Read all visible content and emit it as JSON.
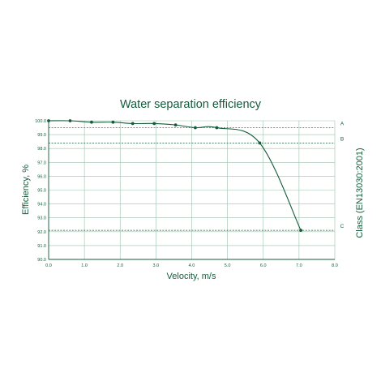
{
  "chart_data": {
    "type": "line",
    "title": "Water separation efficiency",
    "xlabel": "Velocity, m/s",
    "ylabel": "Efficiency, %",
    "y2label": "Class (EN13030:2001)",
    "xlim": [
      0,
      8
    ],
    "ylim": [
      90,
      100
    ],
    "x_ticks": [
      "0.0",
      "1.0",
      "2.0",
      "3.0",
      "4.0",
      "5.0",
      "6.0",
      "7.0",
      "8.0"
    ],
    "y_ticks": [
      "90.0",
      "91.0",
      "92.0",
      "93.0",
      "94.0",
      "95.0",
      "96.0",
      "97.0",
      "98.0",
      "99.0",
      "100.0"
    ],
    "grid": true,
    "series": [
      {
        "x": [
          0.0,
          0.6,
          1.2,
          1.8,
          2.35,
          2.95,
          3.55,
          4.1,
          4.7,
          5.9,
          7.05
        ],
        "y": [
          100.0,
          100.0,
          99.9,
          99.9,
          99.8,
          99.8,
          99.7,
          99.5,
          99.5,
          98.4,
          92.1
        ]
      }
    ],
    "class_thresholds": [
      {
        "label": "A",
        "value": 99.5
      },
      {
        "label": "B",
        "value": 98.4
      },
      {
        "label": "C",
        "value": 92.1
      }
    ],
    "colors": {
      "primary": "#145c3a",
      "grid": "#9dc1ad"
    }
  }
}
